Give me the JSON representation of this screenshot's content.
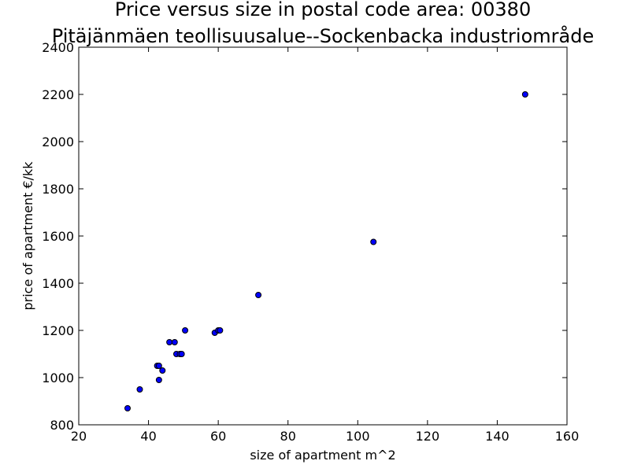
{
  "chart_data": {
    "type": "scatter",
    "title": "Price versus size in postal code area: 00380",
    "subtitle": "Pitäjänmäen teollisuusalue--Sockenbacka industriområde",
    "xlabel": "size of apartment m^2",
    "ylabel": "price of apartment €/kk",
    "xlim": [
      20,
      160
    ],
    "ylim": [
      800,
      2400
    ],
    "xticks": [
      20,
      40,
      60,
      80,
      100,
      120,
      140,
      160
    ],
    "yticks": [
      800,
      1000,
      1200,
      1400,
      1600,
      1800,
      2000,
      2200,
      2400
    ],
    "grid": false,
    "marker_color": "#0000ff",
    "marker_edge_color": "#000000",
    "points": [
      {
        "x": 34.0,
        "y": 870
      },
      {
        "x": 37.5,
        "y": 950
      },
      {
        "x": 42.5,
        "y": 1050
      },
      {
        "x": 43.0,
        "y": 1050
      },
      {
        "x": 43.0,
        "y": 990
      },
      {
        "x": 44.0,
        "y": 1030
      },
      {
        "x": 46.0,
        "y": 1150
      },
      {
        "x": 47.5,
        "y": 1150
      },
      {
        "x": 48.0,
        "y": 1100
      },
      {
        "x": 49.0,
        "y": 1100
      },
      {
        "x": 49.5,
        "y": 1100
      },
      {
        "x": 50.5,
        "y": 1200
      },
      {
        "x": 59.0,
        "y": 1190
      },
      {
        "x": 60.0,
        "y": 1200
      },
      {
        "x": 60.5,
        "y": 1200
      },
      {
        "x": 71.5,
        "y": 1350
      },
      {
        "x": 104.5,
        "y": 1575
      },
      {
        "x": 148.0,
        "y": 2200
      }
    ]
  }
}
